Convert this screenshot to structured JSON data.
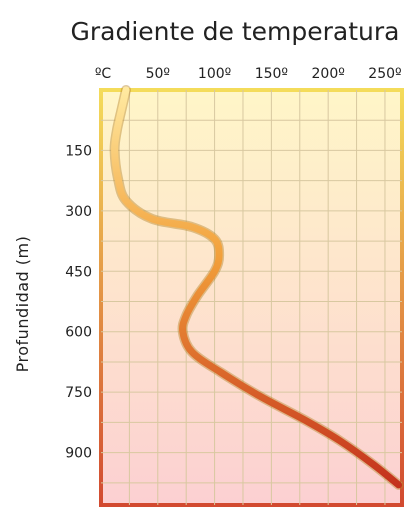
{
  "chart_data": {
    "type": "line",
    "title": "Gradiente de temperatura",
    "xlabel": "",
    "ylabel": "Profundidad (m)",
    "x_tick_labels": [
      "ºC",
      "50º",
      "100º",
      "150º",
      "200º",
      "250º"
    ],
    "x_ticks": [
      0,
      50,
      100,
      150,
      200,
      250
    ],
    "y_tick_labels": [
      "150",
      "300",
      "450",
      "600",
      "750",
      "900"
    ],
    "y_ticks": [
      150,
      300,
      450,
      600,
      750,
      900
    ],
    "xlim": [
      0,
      265
    ],
    "ylim": [
      0,
      1030
    ],
    "y_inverted": true,
    "grid": true,
    "series": [
      {
        "x": [
          22,
          18,
          14,
          12,
          15,
          22,
          45,
          80,
          100,
          104,
          100,
          85,
          75,
          72,
          80,
          105,
          140,
          180,
          210,
          240,
          262
        ],
        "y": [
          0,
          50,
          100,
          150,
          220,
          275,
          320,
          340,
          370,
          410,
          450,
          510,
          560,
          600,
          650,
          700,
          760,
          820,
          870,
          930,
          980
        ]
      }
    ],
    "colors": {
      "background_top": "#fff6c8",
      "background_bottom": "#fcd0d2",
      "frame_top": "#f4dc5a",
      "frame_bottom": "#d24a30",
      "grid": "#d8c8a0",
      "curve_top": "#ffe9a0",
      "curve_mid": "#f2a03a",
      "curve_bottom": "#c0281a"
    }
  }
}
